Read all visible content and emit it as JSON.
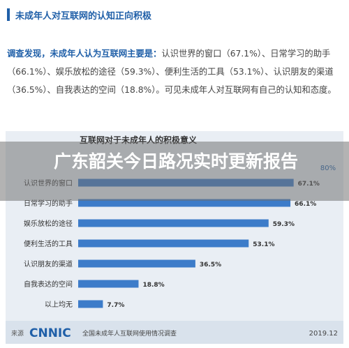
{
  "section": {
    "title": "未成年人对互联网的认知正向积极"
  },
  "paragraph": {
    "lead": "调查发现，未成年人认为互联网主要是：",
    "body": "认识世界的窗口（67.1%）、日常学习的助手（66.1%）、娱乐放松的途径（59.3%）、便利生活的工具（53.1%）、认识朋友的渠道（36.5%）、自我表达的空间（18.8%）。可见未成年人对互联网有自己的认知和态度。"
  },
  "banner": {
    "text": "广东韶关今日路况实时更新报告"
  },
  "chart_data": {
    "type": "bar",
    "orientation": "horizontal",
    "title": "互联网对于未成年人的积极意义",
    "categories": [
      "认识世界的窗口",
      "日常学习的助手",
      "娱乐放松的途径",
      "便利生活的工具",
      "认识朋友的渠道",
      "自我表达的空间",
      "以上均无"
    ],
    "values": [
      67.1,
      66.1,
      59.3,
      53.1,
      36.5,
      18.8,
      7.7
    ],
    "value_labels": [
      "67.1%",
      "66.1%",
      "59.3%",
      "53.1%",
      "36.5%",
      "18.8%",
      "7.7%"
    ],
    "scale_label": "80%",
    "xlim": [
      0,
      80
    ],
    "bar_color": "#3d7cc9",
    "grid": false,
    "source": {
      "prefix": "来源",
      "logo": "CNNIC",
      "report": "全国未成年人互联网使用情况调查",
      "date": "2019.12"
    }
  },
  "colors": {
    "accent": "#1f5fa8",
    "chart_bg": "#e9eef4",
    "bar": "#3d7cc9"
  }
}
